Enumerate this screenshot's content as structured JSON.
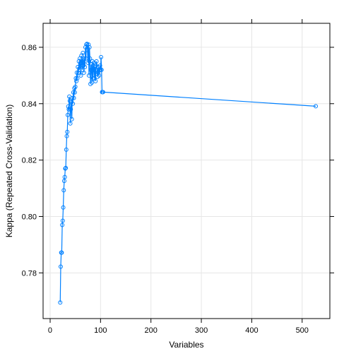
{
  "chart_data": {
    "type": "line",
    "xlabel": "Variables",
    "ylabel": "Kappa (Repeated Cross-Validation)",
    "xlim": [
      -14,
      555
    ],
    "ylim": [
      0.7638,
      0.8685
    ],
    "xticks": [
      0,
      100,
      200,
      300,
      400,
      500
    ],
    "yticks": [
      0.78,
      0.8,
      0.82,
      0.84,
      0.86
    ],
    "ytick_labels": [
      "0.78",
      "0.80",
      "0.82",
      "0.84",
      "0.86"
    ],
    "grid": true,
    "color": "#0080ff",
    "marker": "open-circle",
    "series": [
      {
        "x": [
          20,
          21,
          22,
          23,
          24,
          25,
          26,
          27,
          28,
          29,
          30,
          31,
          32,
          33,
          34,
          35,
          36,
          37,
          38,
          39,
          40,
          41,
          42,
          43,
          44,
          45,
          46,
          47,
          48,
          49,
          50,
          51,
          52,
          53,
          54,
          55,
          56,
          57,
          58,
          59,
          60,
          61,
          62,
          63,
          64,
          65,
          66,
          67,
          68,
          69,
          70,
          71,
          72,
          73,
          74,
          75,
          76,
          77,
          78,
          79,
          80,
          81,
          82,
          83,
          84,
          85,
          86,
          87,
          88,
          89,
          90,
          91,
          92,
          93,
          94,
          95,
          96,
          97,
          98,
          99,
          100,
          101,
          102,
          103,
          104,
          105,
          527
        ],
        "y": [
          0.7695,
          0.7822,
          0.7872,
          0.7872,
          0.797,
          0.7985,
          0.8032,
          0.8093,
          0.8126,
          0.814,
          0.817,
          0.8172,
          0.8237,
          0.8285,
          0.83,
          0.836,
          0.839,
          0.838,
          0.8425,
          0.841,
          0.833,
          0.838,
          0.8405,
          0.8345,
          0.842,
          0.84,
          0.844,
          0.842,
          0.8455,
          0.844,
          0.846,
          0.849,
          0.848,
          0.851,
          0.849,
          0.853,
          0.851,
          0.855,
          0.852,
          0.856,
          0.8535,
          0.85,
          0.857,
          0.855,
          0.852,
          0.858,
          0.8545,
          0.851,
          0.856,
          0.853,
          0.86,
          0.856,
          0.861,
          0.8612,
          0.859,
          0.8545,
          0.861,
          0.85,
          0.86,
          0.856,
          0.847,
          0.852,
          0.854,
          0.8475,
          0.855,
          0.849,
          0.852,
          0.8545,
          0.849,
          0.853,
          0.848,
          0.8535,
          0.855,
          0.852,
          0.8495,
          0.851,
          0.853,
          0.85,
          0.852,
          0.8535,
          0.852,
          0.8565,
          0.852,
          0.8441,
          0.8441,
          0.8441,
          0.8391
        ]
      }
    ]
  }
}
